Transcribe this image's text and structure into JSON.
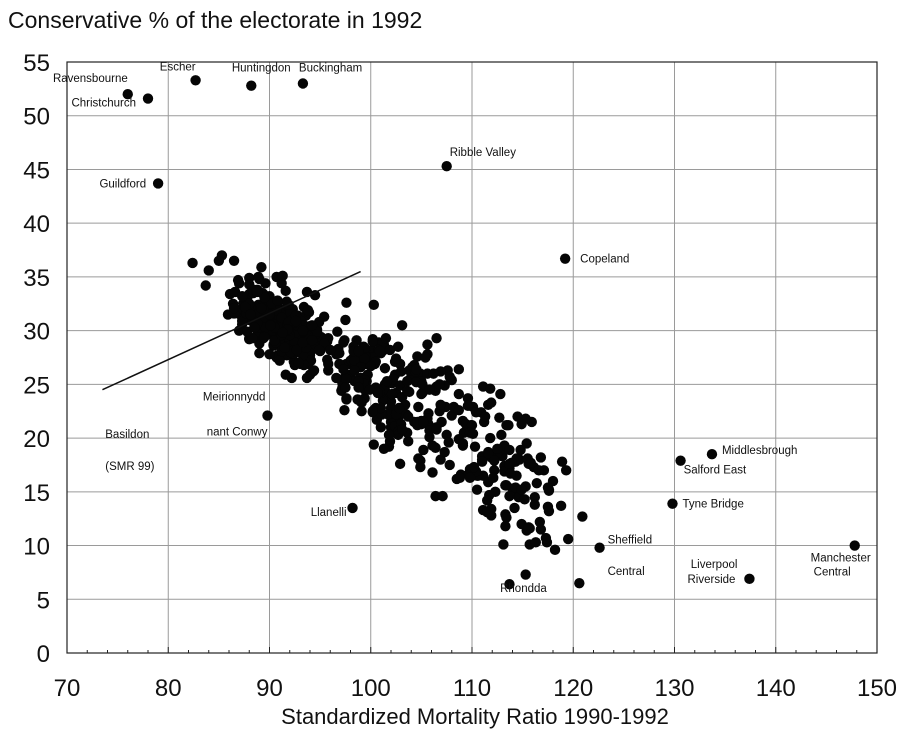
{
  "chart_data": {
    "type": "scatter",
    "title": "Conservative % of the electorate in 1992",
    "xlabel": "Standardized Mortality Ratio 1990-1992",
    "ylabel": "",
    "xlim": [
      70,
      150
    ],
    "ylim": [
      0,
      55
    ],
    "x_ticks": [
      70,
      80,
      90,
      100,
      110,
      120,
      130,
      140,
      150
    ],
    "y_ticks": [
      0,
      5,
      10,
      15,
      20,
      25,
      30,
      35,
      40,
      45,
      50,
      55
    ],
    "grid": true,
    "annotations": [
      {
        "text": "Ravensbourne",
        "x": 76,
        "y": 52,
        "anchor": "end"
      },
      {
        "text": "Christchurch",
        "x": 78,
        "y": 51.6,
        "anchor": "end"
      },
      {
        "text": "Escher",
        "x": 82.7,
        "y": 53.3,
        "anchor": "end"
      },
      {
        "text": "Huntingdon",
        "x": 88.2,
        "y": 52.8,
        "anchor": "middle"
      },
      {
        "text": "Buckingham",
        "x": 93.3,
        "y": 53,
        "anchor": "start"
      },
      {
        "text": "Guildford",
        "x": 79,
        "y": 43.7,
        "anchor": "end"
      },
      {
        "text": "Ribble Valley",
        "x": 107.5,
        "y": 45.3,
        "anchor": "start"
      },
      {
        "text": "Copeland",
        "x": 119.2,
        "y": 36.7,
        "anchor": "start"
      },
      {
        "text": "Basildon",
        "x": 72,
        "y": 23,
        "anchor": "start"
      },
      {
        "text": "(SMR 99)",
        "x": 72,
        "y": 21.3,
        "anchor": "start"
      },
      {
        "text": "Meirionnydd",
        "x": 89.8,
        "y": 22.1,
        "anchor": "end"
      },
      {
        "text": "nant Conwy",
        "x": 89.8,
        "y": 20.6,
        "anchor": "end"
      },
      {
        "text": "Llanelli",
        "x": 98.2,
        "y": 13.5,
        "anchor": "end"
      },
      {
        "text": "Middlesbrough",
        "x": 133.7,
        "y": 18.5,
        "anchor": "start"
      },
      {
        "text": "Salford East",
        "x": 130.6,
        "y": 17.9,
        "anchor": "start"
      },
      {
        "text": "Tyne Bridge",
        "x": 129.8,
        "y": 13.9,
        "anchor": "start"
      },
      {
        "text": "Sheffield",
        "x": 122.6,
        "y": 9.8,
        "anchor": "start"
      },
      {
        "text": "Central",
        "x": 122.6,
        "y": 8.3,
        "anchor": "start"
      },
      {
        "text": "Liverpool",
        "x": 137.4,
        "y": 6.9,
        "anchor": "end"
      },
      {
        "text": "Riverside",
        "x": 137.4,
        "y": 6.9,
        "anchor": "end"
      },
      {
        "text": "Rhondda",
        "x": 113.7,
        "y": 6.4,
        "anchor": "middle"
      },
      {
        "text": "Manchester",
        "x": 147.8,
        "y": 10,
        "anchor": "end"
      },
      {
        "text": "Central",
        "x": 147.8,
        "y": 10,
        "anchor": "end"
      }
    ],
    "basildon_leader": {
      "from": [
        73.5,
        24.5
      ],
      "to": [
        99,
        35.5
      ]
    },
    "labeled_points": [
      [
        76,
        52
      ],
      [
        78,
        51.6
      ],
      [
        82.7,
        53.3
      ],
      [
        88.2,
        52.8
      ],
      [
        93.3,
        53
      ],
      [
        79,
        43.7
      ],
      [
        107.5,
        45.3
      ],
      [
        119.2,
        36.7
      ],
      [
        89.8,
        22.1
      ],
      [
        98.2,
        13.5
      ],
      [
        133.7,
        18.5
      ],
      [
        130.6,
        17.9
      ],
      [
        129.8,
        13.9
      ],
      [
        122.6,
        9.8
      ],
      [
        137.4,
        6.9
      ],
      [
        113.7,
        6.4
      ],
      [
        147.8,
        10
      ]
    ],
    "point_count": 617
  }
}
